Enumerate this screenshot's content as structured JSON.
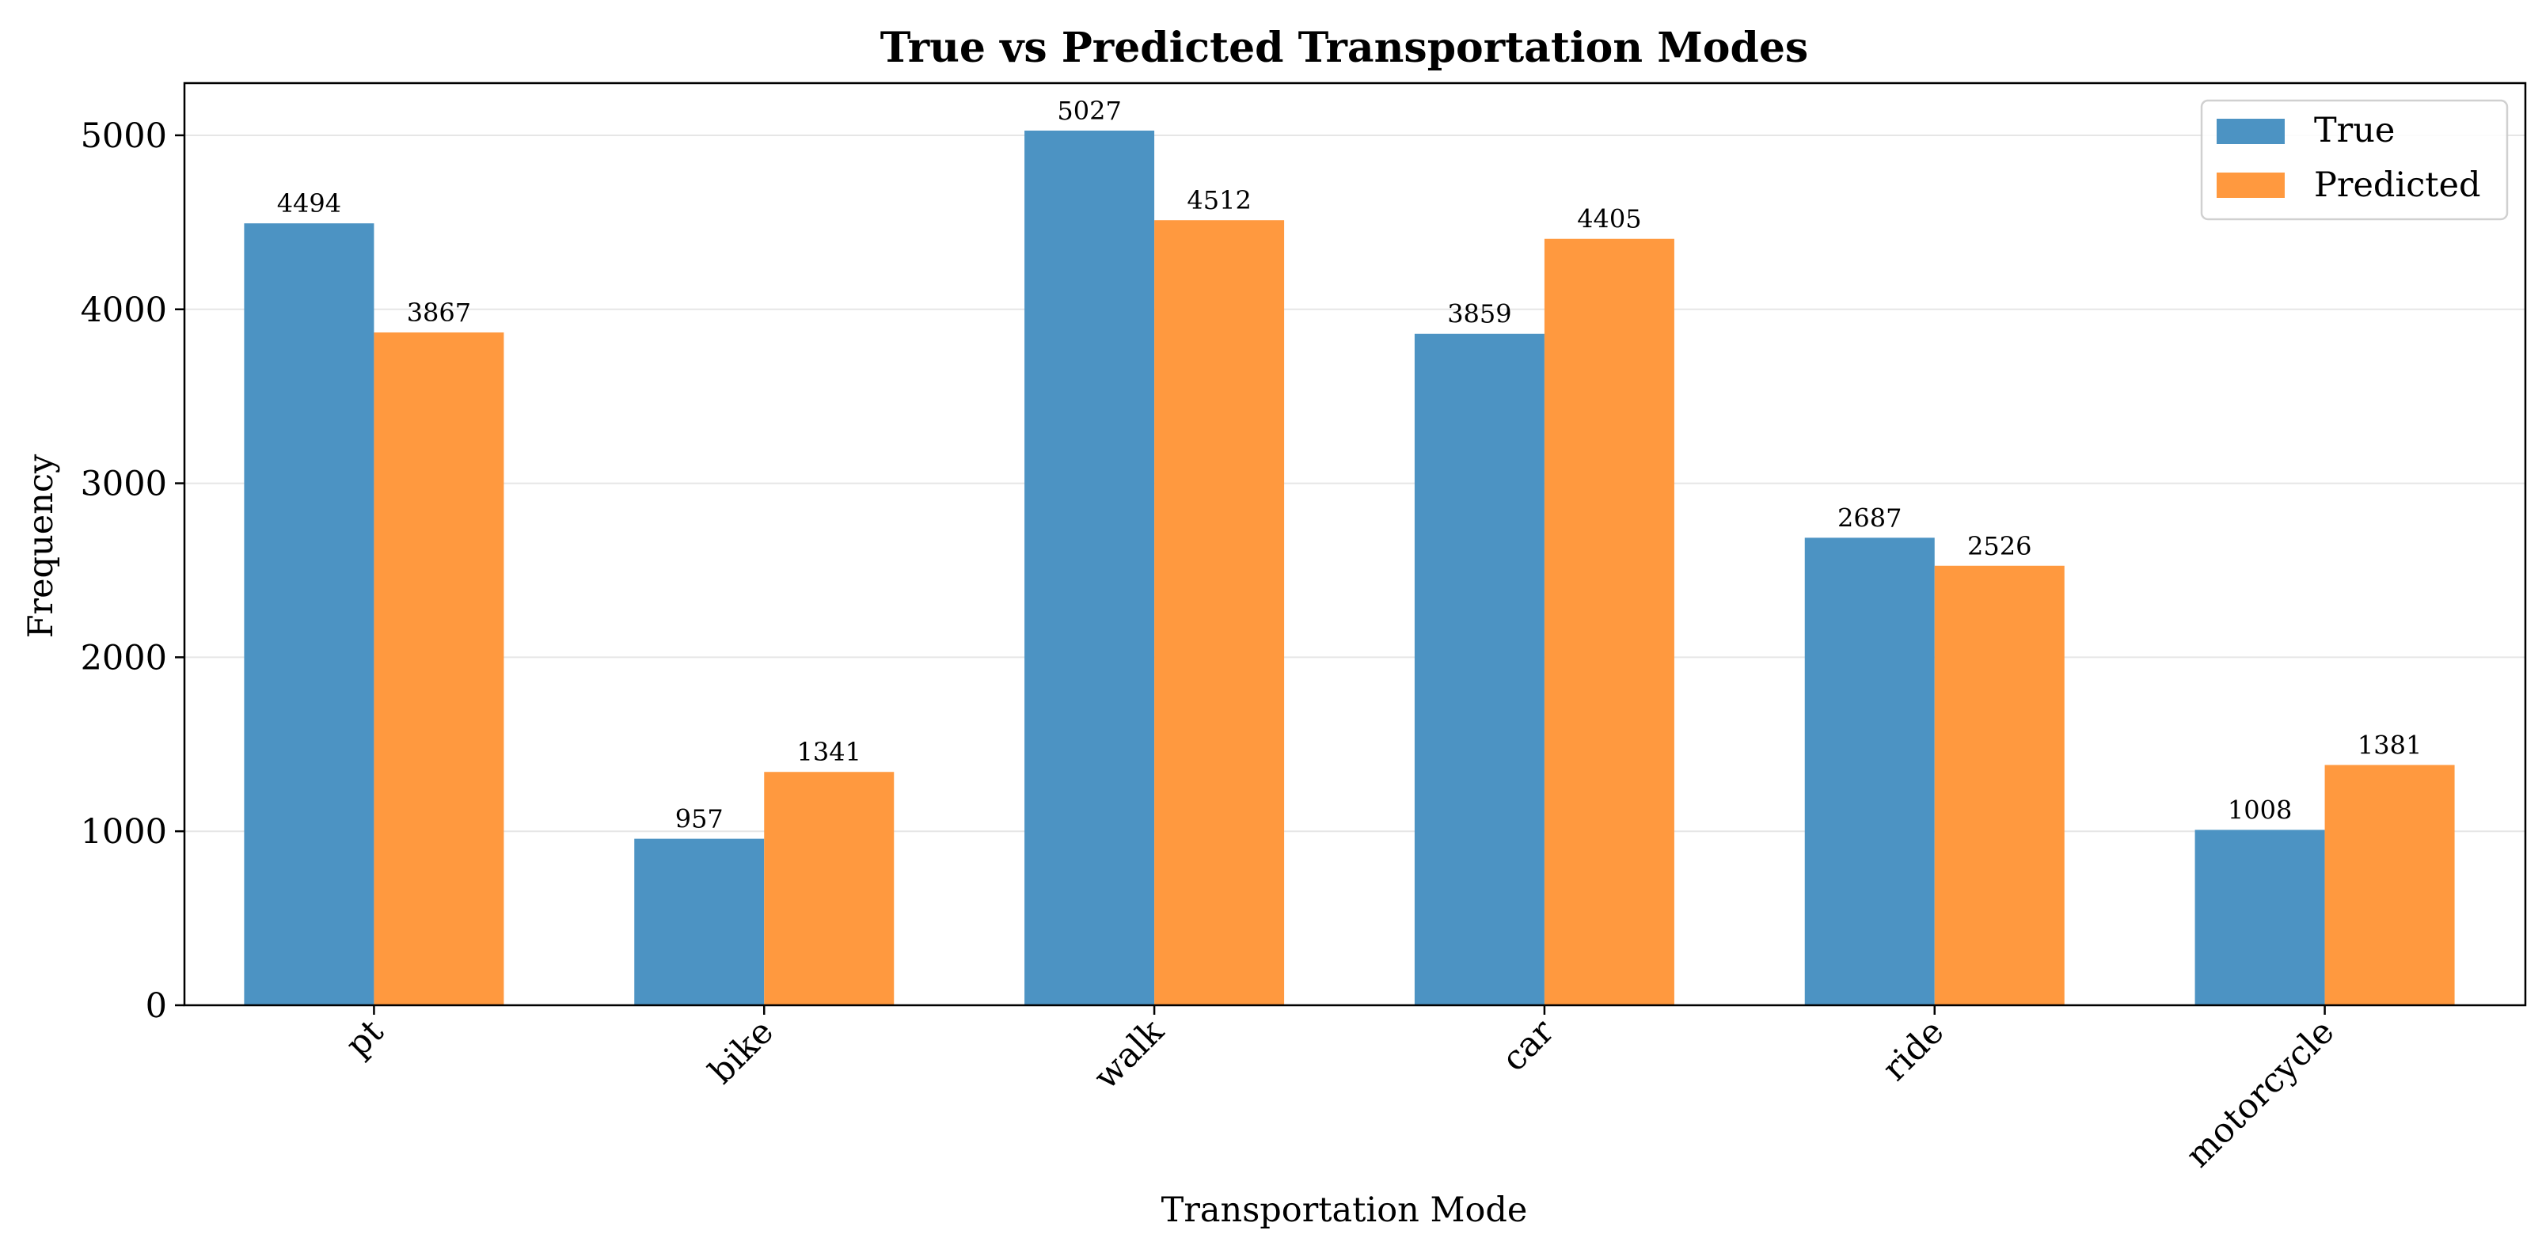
{
  "chart_data": {
    "type": "bar",
    "title": "True vs Predicted Transportation Modes",
    "xlabel": "Transportation Mode",
    "ylabel": "Frequency",
    "categories": [
      "pt",
      "bike",
      "walk",
      "car",
      "ride",
      "motorcycle"
    ],
    "series": [
      {
        "name": "True",
        "color": "#4C93C3",
        "values": [
          4494,
          957,
          5027,
          3859,
          2687,
          1008
        ]
      },
      {
        "name": "Predicted",
        "color": "#FF993F",
        "values": [
          3867,
          1341,
          4512,
          4405,
          2526,
          1381
        ]
      }
    ],
    "ylim": [
      0,
      5300
    ],
    "yticks": [
      0,
      1000,
      2000,
      3000,
      4000,
      5000
    ],
    "grid": "y",
    "legend": "top-right",
    "data_labels": true,
    "x_tick_rotation": "45"
  }
}
